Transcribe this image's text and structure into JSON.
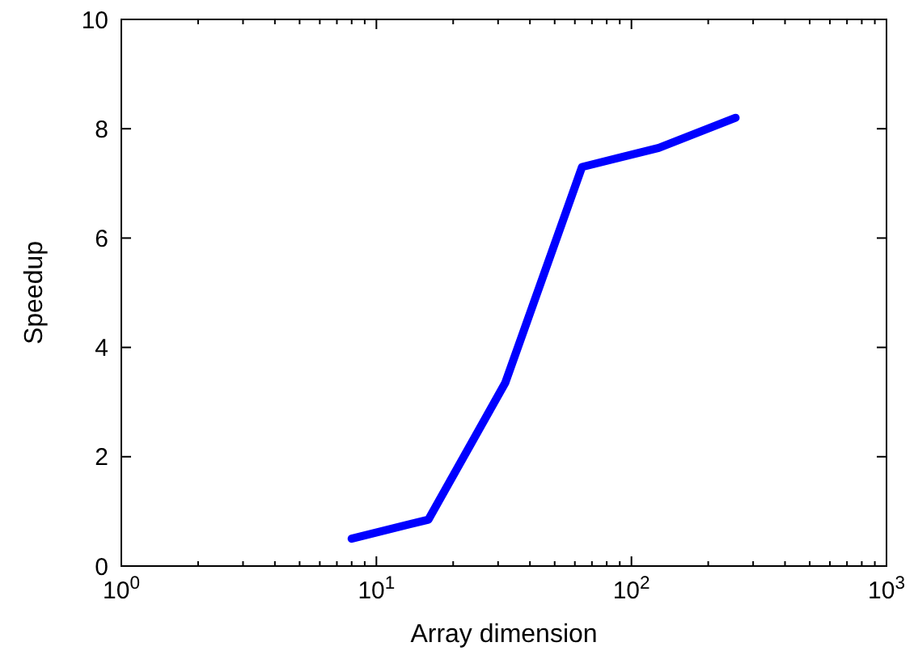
{
  "chart_data": {
    "type": "line",
    "xlabel": "Array dimension",
    "ylabel": "Speedup",
    "x": [
      8,
      16,
      32,
      64,
      128,
      256
    ],
    "series": [
      {
        "color": "#0000ff",
        "values": [
          0.5,
          0.85,
          3.35,
          7.3,
          7.65,
          8.2
        ]
      }
    ],
    "log": "x",
    "xlim": [
      1,
      1000
    ],
    "xticks": [
      {
        "value": 1,
        "label": "10$^{0}$"
      },
      {
        "value": 10,
        "label": "10$^{1}$"
      },
      {
        "value": 100,
        "label": "10$^{2}$"
      },
      {
        "value": 1000,
        "label": "10$^{3}$"
      }
    ],
    "ylim": [
      0,
      10
    ],
    "yticks": [
      0,
      2,
      4,
      6,
      8,
      10
    ],
    "grid": false,
    "line_style": "solid",
    "marker": "none"
  }
}
